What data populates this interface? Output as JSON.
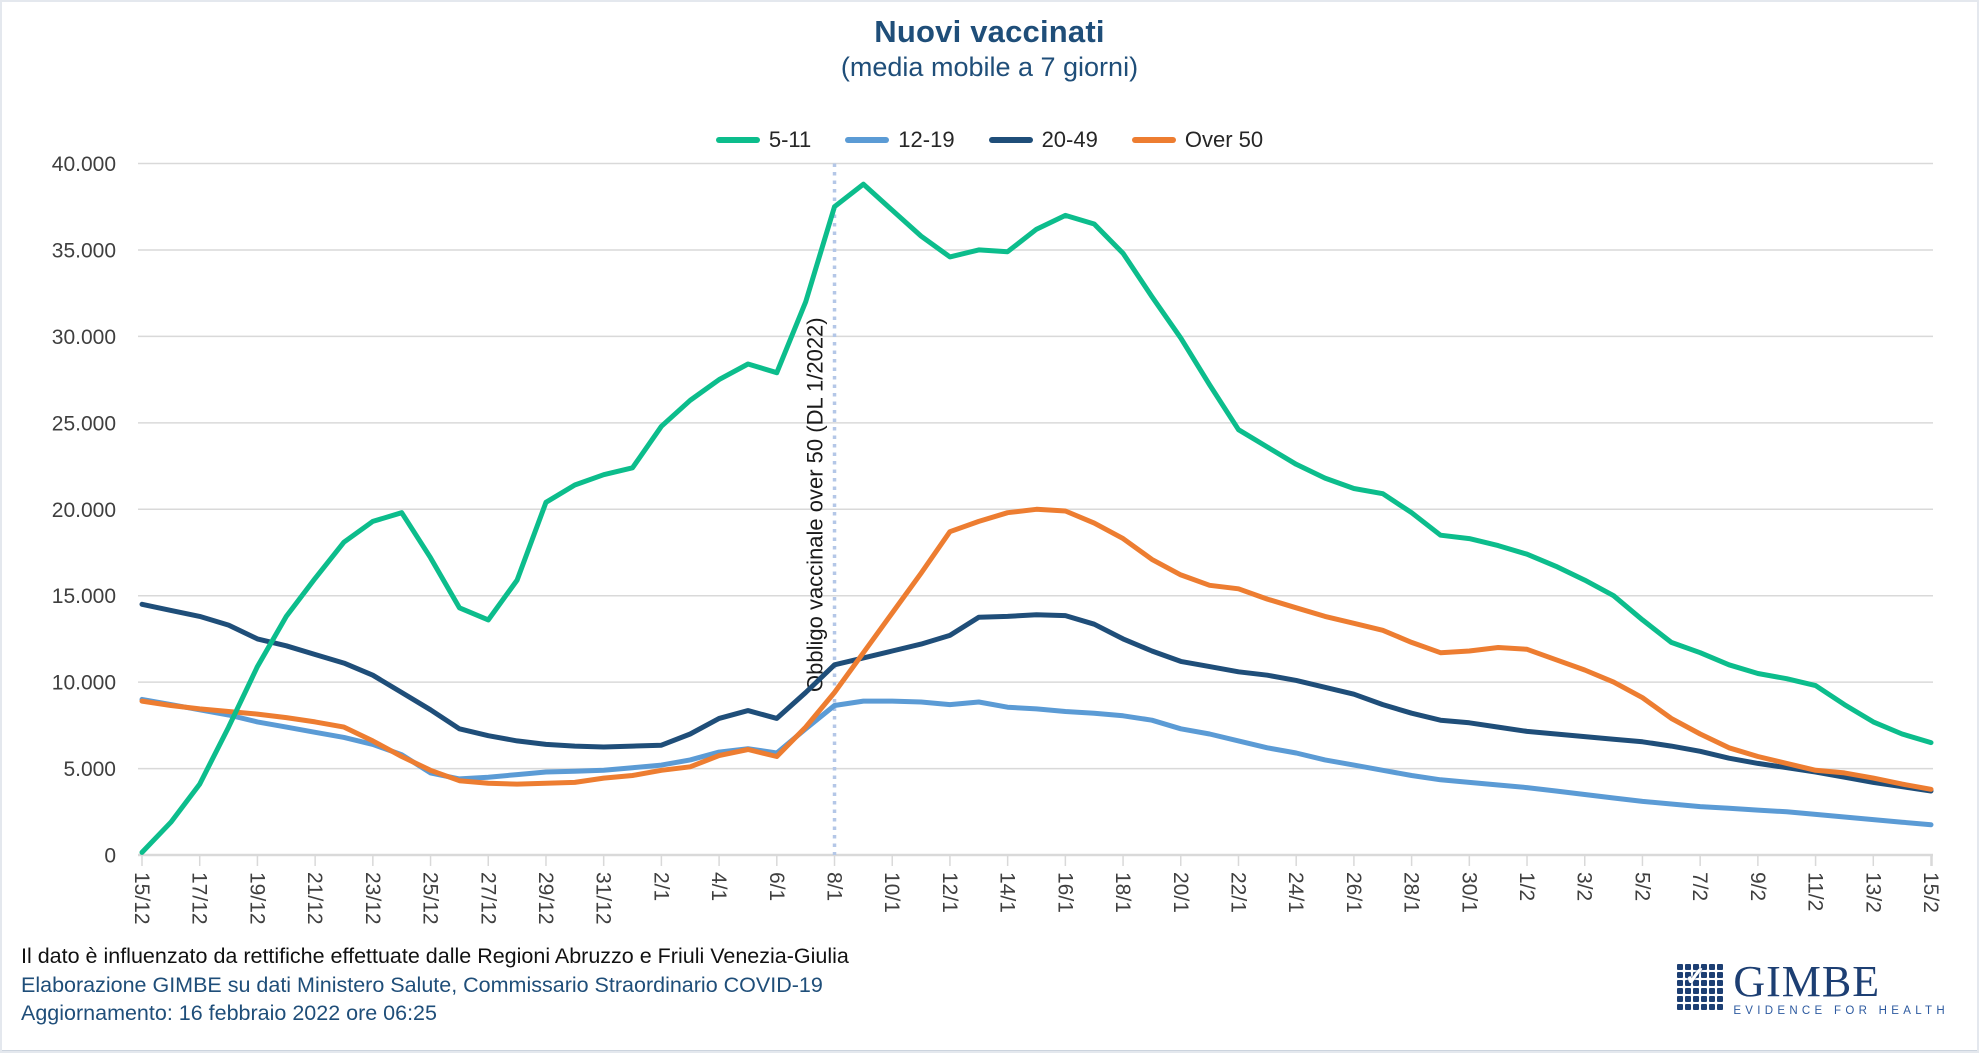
{
  "chart_data": {
    "type": "line",
    "title": "Nuovi vaccinati",
    "subtitle": "(media mobile a 7 giorni)",
    "xlabel": "",
    "ylabel": "",
    "ylim": [
      0,
      40000
    ],
    "grid": true,
    "grid_color": "#d9d9d9",
    "legend_position": "top-center",
    "x_resolution": "daily",
    "x_tick_labels": [
      "15/12",
      "17/12",
      "19/12",
      "21/12",
      "23/12",
      "25/12",
      "27/12",
      "29/12",
      "31/12",
      "2/1",
      "4/1",
      "6/1",
      "8/1",
      "10/1",
      "12/1",
      "14/1",
      "16/1",
      "18/1",
      "20/1",
      "22/1",
      "24/1",
      "26/1",
      "28/1",
      "30/1",
      "1/2",
      "3/2",
      "5/2",
      "7/2",
      "9/2",
      "11/2",
      "13/2",
      "15/2"
    ],
    "y_ticks": [
      {
        "value": 0,
        "label": "0"
      },
      {
        "value": 5000,
        "label": "5.000"
      },
      {
        "value": 10000,
        "label": "10.000"
      },
      {
        "value": 15000,
        "label": "15.000"
      },
      {
        "value": 20000,
        "label": "20.000"
      },
      {
        "value": 25000,
        "label": "25.000"
      },
      {
        "value": 30000,
        "label": "30.000"
      },
      {
        "value": 35000,
        "label": "35.000"
      },
      {
        "value": 40000,
        "label": "40.000"
      }
    ],
    "annotation": {
      "text": "Obbligo vaccinale over 50 (DL 1/2022)",
      "x_index": 24,
      "x_tick_label": "8/1",
      "line_color": "#b4c7e7"
    },
    "draw_order": [
      2,
      1,
      3,
      0
    ],
    "series": [
      {
        "name": "5-11",
        "color": "#0cbd8c",
        "values": [
          150,
          1900,
          4100,
          7400,
          10900,
          13800,
          16000,
          18100,
          19300,
          19800,
          17200,
          14300,
          13600,
          15900,
          20400,
          21400,
          22000,
          22400,
          24800,
          26300,
          27500,
          28400,
          27900,
          32000,
          37500,
          38800,
          37300,
          35800,
          34600,
          35000,
          34900,
          36200,
          37000,
          36500,
          34800,
          32300,
          29900,
          27200,
          24600,
          23600,
          22600,
          21800,
          21200,
          20900,
          19800,
          18500,
          18300,
          17900,
          17400,
          16700,
          15900,
          15000,
          13600,
          12300,
          11700,
          11000,
          10500,
          10200,
          9800,
          8700,
          7700,
          7000,
          6500
        ]
      },
      {
        "name": "12-19",
        "color": "#5b9bd5",
        "values": [
          9000,
          8700,
          8400,
          8100,
          7700,
          7400,
          7100,
          6800,
          6400,
          5800,
          4750,
          4400,
          4500,
          4650,
          4800,
          4850,
          4900,
          5050,
          5200,
          5500,
          5950,
          6150,
          5900,
          7300,
          8650,
          8900,
          8900,
          8850,
          8700,
          8850,
          8550,
          8450,
          8300,
          8200,
          8050,
          7800,
          7300,
          7000,
          6600,
          6200,
          5900,
          5500,
          5200,
          4900,
          4600,
          4350,
          4200,
          4050,
          3900,
          3700,
          3500,
          3300,
          3100,
          2950,
          2800,
          2700,
          2600,
          2500,
          2350,
          2200,
          2050,
          1900,
          1750
        ]
      },
      {
        "name": "20-49",
        "color": "#1f4e79",
        "values": [
          14500,
          14150,
          13800,
          13300,
          12500,
          12100,
          11600,
          11100,
          10400,
          9400,
          8400,
          7300,
          6900,
          6600,
          6400,
          6300,
          6250,
          6300,
          6350,
          7000,
          7900,
          8350,
          7900,
          9400,
          11000,
          11400,
          11800,
          12200,
          12700,
          13750,
          13800,
          13900,
          13850,
          13350,
          12500,
          11800,
          11200,
          10900,
          10600,
          10400,
          10100,
          9700,
          9300,
          8700,
          8200,
          7800,
          7650,
          7400,
          7150,
          7000,
          6850,
          6700,
          6550,
          6300,
          6000,
          5600,
          5300,
          5050,
          4800,
          4500,
          4200,
          3950,
          3700
        ]
      },
      {
        "name": "Over 50",
        "color": "#ed7d31",
        "values": [
          8900,
          8650,
          8450,
          8300,
          8150,
          7950,
          7700,
          7400,
          6600,
          5700,
          4900,
          4300,
          4150,
          4100,
          4150,
          4200,
          4450,
          4600,
          4900,
          5100,
          5750,
          6100,
          5700,
          7400,
          9400,
          11700,
          14000,
          16300,
          18700,
          19300,
          19800,
          20000,
          19900,
          19200,
          18300,
          17100,
          16200,
          15600,
          15400,
          14800,
          14300,
          13800,
          13400,
          13000,
          12300,
          11700,
          11800,
          12000,
          11900,
          11300,
          10700,
          10000,
          9100,
          7900,
          7000,
          6200,
          5700,
          5300,
          4900,
          4750,
          4450,
          4100,
          3800
        ]
      }
    ]
  },
  "footer": {
    "note": "Il dato è influenzato da rettifiche effettuate dalle Regioni Abruzzo e Friuli Venezia-Giulia",
    "source": "Elaborazione GIMBE su dati Ministero Salute, Commissario Straordinario COVID-19",
    "updated": "Aggiornamento: 16 febbraio 2022 ore 06:25"
  },
  "logo": {
    "name": "GIMBE",
    "tagline": "EVIDENCE FOR HEALTH"
  }
}
